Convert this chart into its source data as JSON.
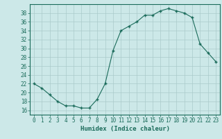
{
  "x": [
    0,
    1,
    2,
    3,
    4,
    5,
    6,
    7,
    8,
    9,
    10,
    11,
    12,
    13,
    14,
    15,
    16,
    17,
    18,
    19,
    20,
    21,
    22,
    23
  ],
  "y": [
    22,
    21,
    19.5,
    18,
    17,
    17,
    16.5,
    16.5,
    18.5,
    22,
    29.5,
    34,
    35,
    36,
    37.5,
    37.5,
    38.5,
    39,
    38.5,
    38,
    37,
    31,
    29,
    27
  ],
  "xlabel": "Humidex (Indice chaleur)",
  "xlim": [
    -0.5,
    23.5
  ],
  "ylim": [
    15.0,
    40.0
  ],
  "yticks": [
    16,
    18,
    20,
    22,
    24,
    26,
    28,
    30,
    32,
    34,
    36,
    38
  ],
  "xticks": [
    0,
    1,
    2,
    3,
    4,
    5,
    6,
    7,
    8,
    9,
    10,
    11,
    12,
    13,
    14,
    15,
    16,
    17,
    18,
    19,
    20,
    21,
    22,
    23
  ],
  "line_color": "#1a6b5a",
  "marker_color": "#1a6b5a",
  "bg_color": "#cce8e8",
  "grid_color": "#aacaca",
  "axis_color": "#1a6b5a",
  "label_fontsize": 6.5,
  "tick_fontsize": 5.5
}
